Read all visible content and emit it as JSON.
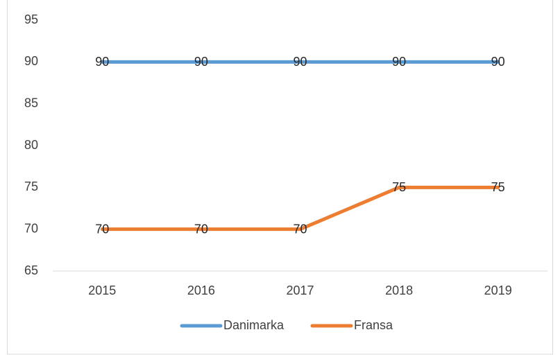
{
  "chart_data": {
    "type": "line",
    "categories": [
      "2015",
      "2016",
      "2017",
      "2018",
      "2019"
    ],
    "series": [
      {
        "name": "Danimarka",
        "color": "#5b9bd5",
        "values": [
          90,
          90,
          90,
          90,
          90
        ]
      },
      {
        "name": "Fransa",
        "color": "#ed7d31",
        "values": [
          70,
          70,
          70,
          75,
          75
        ]
      }
    ],
    "ylim": [
      65,
      95
    ],
    "yticks": [
      65,
      70,
      75,
      80,
      85,
      90,
      95
    ],
    "grid": false,
    "legend": "bottom"
  }
}
